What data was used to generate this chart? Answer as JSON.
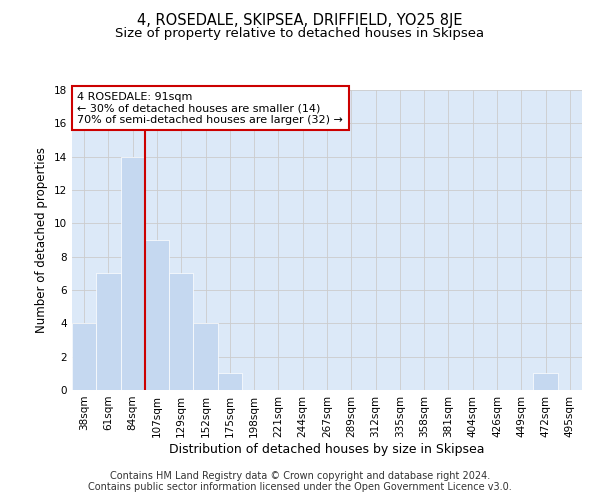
{
  "title": "4, ROSEDALE, SKIPSEA, DRIFFIELD, YO25 8JE",
  "subtitle": "Size of property relative to detached houses in Skipsea",
  "xlabel": "Distribution of detached houses by size in Skipsea",
  "ylabel": "Number of detached properties",
  "categories": [
    "38sqm",
    "61sqm",
    "84sqm",
    "107sqm",
    "129sqm",
    "152sqm",
    "175sqm",
    "198sqm",
    "221sqm",
    "244sqm",
    "267sqm",
    "289sqm",
    "312sqm",
    "335sqm",
    "358sqm",
    "381sqm",
    "404sqm",
    "426sqm",
    "449sqm",
    "472sqm",
    "495sqm"
  ],
  "values": [
    4,
    7,
    14,
    9,
    7,
    4,
    1,
    0,
    0,
    0,
    0,
    0,
    0,
    0,
    0,
    0,
    0,
    0,
    0,
    1,
    0
  ],
  "bar_color": "#c5d8f0",
  "annotation_text": "4 ROSEDALE: 91sqm\n← 30% of detached houses are smaller (14)\n70% of semi-detached houses are larger (32) →",
  "annotation_box_color": "#ffffff",
  "annotation_box_edge": "#cc0000",
  "red_line_color": "#cc0000",
  "red_line_x": 2.5,
  "ylim": [
    0,
    18
  ],
  "yticks": [
    0,
    2,
    4,
    6,
    8,
    10,
    12,
    14,
    16,
    18
  ],
  "grid_color": "#cccccc",
  "background_color": "#dce9f8",
  "footer_line1": "Contains HM Land Registry data © Crown copyright and database right 2024.",
  "footer_line2": "Contains public sector information licensed under the Open Government Licence v3.0.",
  "title_fontsize": 10.5,
  "subtitle_fontsize": 9.5,
  "xlabel_fontsize": 9,
  "ylabel_fontsize": 8.5,
  "tick_fontsize": 7.5,
  "annot_fontsize": 8,
  "footer_fontsize": 7
}
